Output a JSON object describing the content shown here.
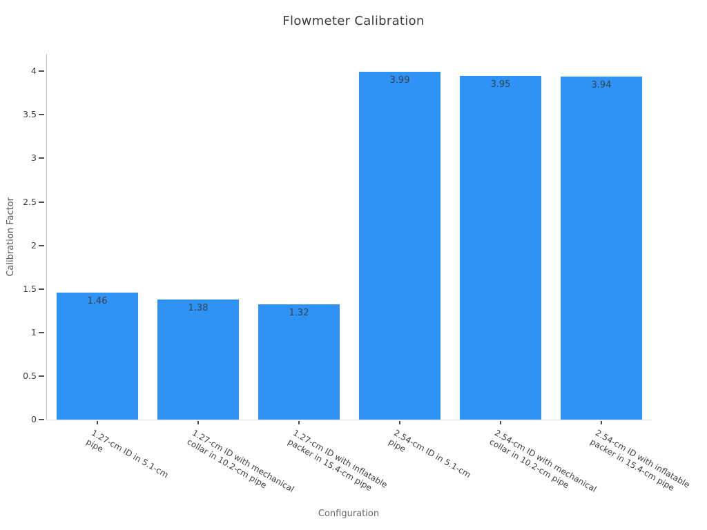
{
  "chart_data": {
    "type": "bar",
    "title": "Flowmeter Calibration",
    "xlabel": "Configuration",
    "ylabel": "Calibration Factor",
    "categories": [
      "1.27-cm ID in 5.1-cm pipe",
      "1.27-cm ID with mechanical collar in 10.2-cm pipe",
      "1.27-cm ID with inflatable packer in 15.4-cm pipe",
      "2.54-cm ID in 5.1-cm pipe",
      "2.54-cm ID with mechanical collar in 10.2-cm pipe",
      "2.54-cm ID with inflatable packer in 15.4-cm pipe"
    ],
    "category_lines": [
      [
        "1.27-cm ID in 5.1-cm",
        "pipe"
      ],
      [
        "1.27-cm ID with mechanical",
        "collar in 10.2-cm pipe"
      ],
      [
        "1.27-cm ID with inflatable",
        "packer in 15.4-cm pipe"
      ],
      [
        "2.54-cm ID in 5.1-cm",
        "pipe"
      ],
      [
        "2.54-cm ID with mechanical",
        "collar in 10.2-cm pipe"
      ],
      [
        "2.54-cm ID with inflatable",
        "packer in 15.4-cm pipe"
      ]
    ],
    "values": [
      1.46,
      1.38,
      1.32,
      3.99,
      3.95,
      3.94
    ],
    "value_labels": [
      "1.46",
      "1.38",
      "1.32",
      "3.99",
      "3.95",
      "3.94"
    ],
    "y_ticks": [
      0,
      0.5,
      1,
      1.5,
      2,
      2.5,
      3,
      3.5,
      4
    ],
    "y_tick_labels": [
      "0",
      "0.5",
      "1",
      "1.5",
      "2",
      "2.5",
      "3",
      "3.5",
      "4"
    ],
    "ylim": [
      0,
      4.2
    ],
    "bar_color": "#2e93f5",
    "value_label_color": "#31414d",
    "x_tick_rotation_deg": 30,
    "grid": false,
    "legend": "none"
  }
}
